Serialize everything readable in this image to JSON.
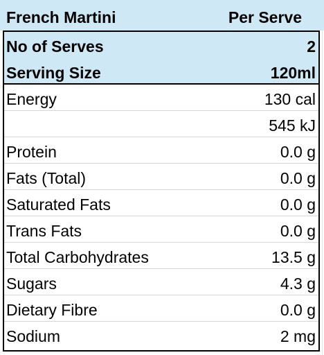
{
  "title": "French Martini",
  "column_header": "Per Serve",
  "serving": {
    "serves_label": "No of Serves",
    "serves_value": "2",
    "size_label": "Serving Size",
    "size_value": "120ml"
  },
  "nutrients": [
    {
      "label": "Energy",
      "value": "130 cal"
    },
    {
      "label": "",
      "value": "545 kJ"
    },
    {
      "label": "Protein",
      "value": "0.0 g"
    },
    {
      "label": "Fats (Total)",
      "value": "0.0 g"
    },
    {
      "label": "Saturated Fats",
      "value": "0.0 g"
    },
    {
      "label": "Trans Fats",
      "value": "0.0 g"
    },
    {
      "label": "Total Carbohydrates",
      "value": "13.5 g"
    },
    {
      "label": "Sugars",
      "value": "4.3 g"
    },
    {
      "label": "Dietary Fibre",
      "value": "0.0 g"
    },
    {
      "label": "Sodium",
      "value": "2 mg"
    }
  ]
}
